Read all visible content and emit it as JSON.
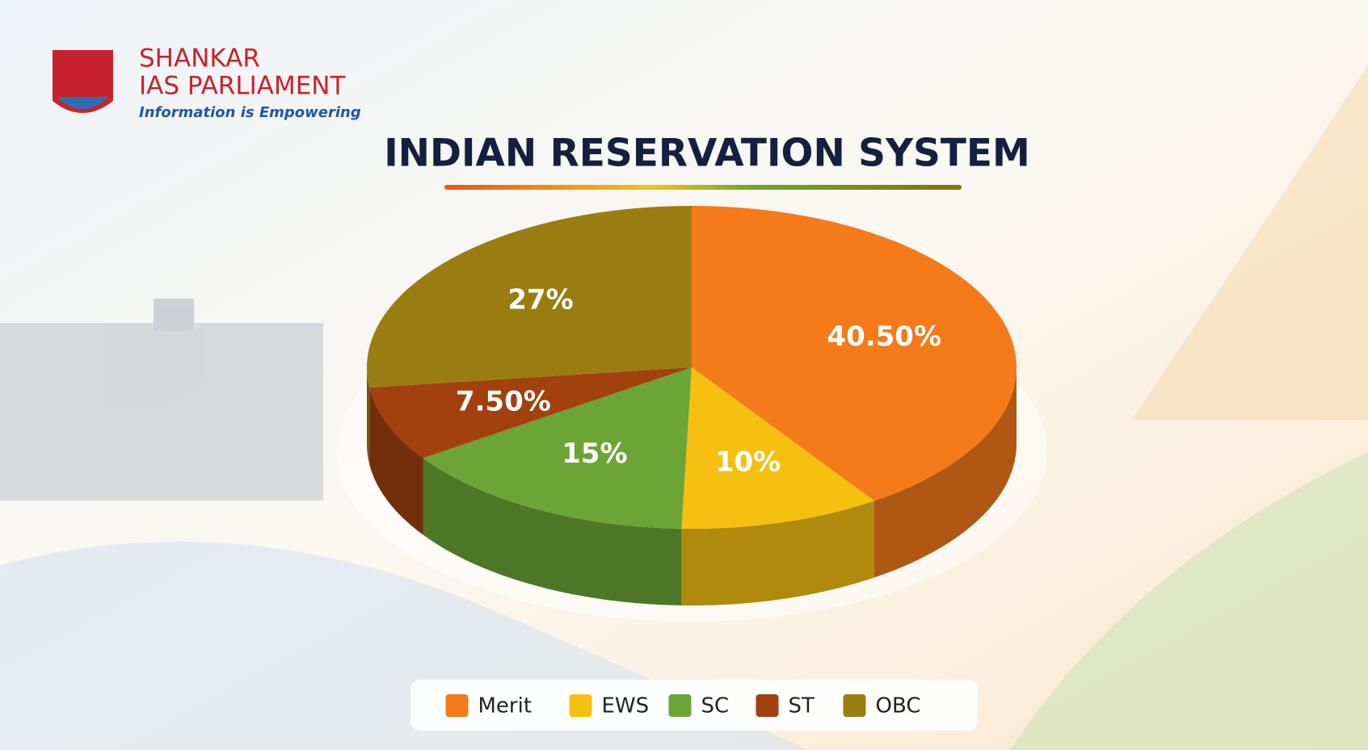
{
  "logo": {
    "name_line1": "SHANKAR",
    "name_line2": "IAS PARLIAMENT",
    "tagline": "Information is Empowering"
  },
  "chart_data": {
    "type": "pie",
    "title": "INDIAN RESERVATION SYSTEM",
    "categories": [
      "Merit",
      "EWS",
      "SC",
      "ST",
      "OBC"
    ],
    "values": [
      40.5,
      10,
      15,
      7.5,
      27
    ],
    "value_labels": [
      "40.50%",
      "10%",
      "15%",
      "7.50%",
      "27%"
    ],
    "colors": [
      "#f47a1a",
      "#f5c010",
      "#6aa535",
      "#a2400e",
      "#9a7d10"
    ],
    "legend": "bottom"
  }
}
